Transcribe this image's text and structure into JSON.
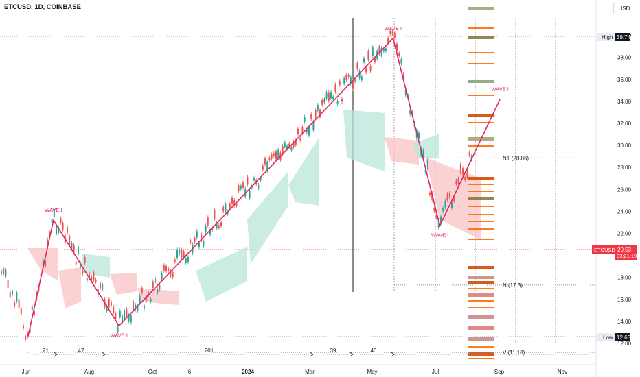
{
  "header": {
    "symbol": "ETCUSD, 1D, COINBASE",
    "currency": "USD"
  },
  "price_badges": {
    "high_label": "High",
    "high_value": "39.74",
    "low_label": "Low",
    "low_value": "12.65",
    "ticker": "ETCUSD",
    "last_price": "20.53",
    "countdown": "03:21:19"
  },
  "colors": {
    "wave": "#e0245e",
    "up_candle": "#26a69a",
    "down_candle": "#ef5350",
    "cloud_bull": "#b9e5d8",
    "cloud_bear": "#f9c3c6",
    "heat_orange": "#ff6d00"
  },
  "chart_data": {
    "type": "line",
    "title": "ETCUSD, 1D, COINBASE",
    "xlabel": "",
    "ylabel": "",
    "ylim": [
      11,
      41
    ],
    "x_tick_labels": [
      "Jun",
      "Aug",
      "Oct",
      "6",
      "2024",
      "Mar",
      "May",
      "Jul",
      "Sep",
      "Nov"
    ],
    "y_ticks": [
      12,
      14,
      16,
      18,
      20,
      22,
      24,
      26,
      28,
      30,
      32,
      34,
      36,
      38,
      40
    ],
    "y_tick_labels": [
      "12.00",
      "14.00",
      "16.00",
      "18.00",
      "20.00",
      "22.00",
      "24.00",
      "26.00",
      "28.00",
      "30.00",
      "32.00",
      "34.00",
      "36.00",
      "38.00",
      "40.00"
    ],
    "series": [
      {
        "name": "",
        "x": [
          "2023-06-10",
          "2023-06-29",
          "2023-08-17",
          "2024-03-09",
          "2024-04-13",
          "2024-05-28"
        ],
        "y": [
          12.65,
          23.2,
          13.6,
          39.74,
          22.7,
          34.2
        ]
      }
    ],
    "wave_labels": [
      "WAVE I",
      "WAVE I",
      "WAVE I",
      "WAVE I",
      "WAVE I"
    ],
    "horizontal_levels": [
      {
        "label": "NT (28.86)",
        "value": 28.86
      },
      {
        "label": "N (17.3)",
        "value": 17.3
      },
      {
        "label": "V (11.18)",
        "value": 11.18
      }
    ],
    "bar_counts": [
      "21",
      "47",
      "201",
      "39",
      "40"
    ],
    "last_price": 20.53,
    "high": 39.74,
    "low": 12.65
  }
}
